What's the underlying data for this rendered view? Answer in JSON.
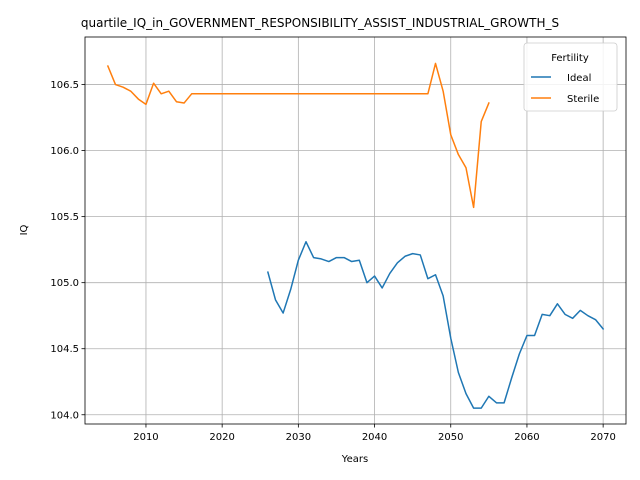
{
  "chart_data": {
    "type": "line",
    "title": "quartile_IQ_in_GOVERNMENT_RESPONSIBILITY_ASSIST_INDUSTRIAL_GROWTH_S",
    "xlabel": "Years",
    "ylabel": "IQ",
    "xlim": [
      2002,
      2073
    ],
    "ylim": [
      103.93,
      106.86
    ],
    "xticks": [
      2010,
      2020,
      2030,
      2040,
      2050,
      2060,
      2070
    ],
    "yticks": [
      104.0,
      104.5,
      105.0,
      105.5,
      106.0,
      106.5
    ],
    "xtick_labels": [
      "2010",
      "2020",
      "2030",
      "2040",
      "2050",
      "2060",
      "2070"
    ],
    "ytick_labels": [
      "104.0",
      "104.5",
      "105.0",
      "105.5",
      "106.0",
      "106.5"
    ],
    "grid": true,
    "legend": {
      "title": "Fertility",
      "position": "top-right"
    },
    "series": [
      {
        "name": "Ideal",
        "color": "#1f77b4",
        "x": [
          2026,
          2027,
          2028,
          2029,
          2030,
          2031,
          2032,
          2033,
          2034,
          2035,
          2036,
          2037,
          2038,
          2039,
          2040,
          2041,
          2042,
          2043,
          2044,
          2045,
          2046,
          2047,
          2048,
          2049,
          2050,
          2051,
          2052,
          2053,
          2054,
          2055,
          2056,
          2057,
          2058,
          2059,
          2060,
          2061,
          2062,
          2063,
          2064,
          2065,
          2066,
          2067,
          2068,
          2069,
          2070
        ],
        "y": [
          105.08,
          104.87,
          104.77,
          104.95,
          105.17,
          105.31,
          105.19,
          105.18,
          105.16,
          105.19,
          105.19,
          105.16,
          105.17,
          105.0,
          105.05,
          104.96,
          105.07,
          105.15,
          105.2,
          105.22,
          105.21,
          105.03,
          105.06,
          104.9,
          104.58,
          104.32,
          104.16,
          104.05,
          104.05,
          104.14,
          104.09,
          104.09,
          104.28,
          104.46,
          104.6,
          104.6,
          104.76,
          104.75,
          104.84,
          104.76,
          104.73,
          104.79,
          104.75,
          104.72,
          104.65
        ]
      },
      {
        "name": "Sterile",
        "color": "#ff7f0e",
        "x": [
          2005,
          2006,
          2007,
          2008,
          2009,
          2010,
          2011,
          2012,
          2013,
          2014,
          2015,
          2016,
          2017,
          2018,
          2019,
          2020,
          2021,
          2022,
          2023,
          2024,
          2025,
          2026,
          2027,
          2028,
          2029,
          2030,
          2031,
          2032,
          2033,
          2034,
          2035,
          2036,
          2037,
          2038,
          2039,
          2040,
          2041,
          2042,
          2043,
          2044,
          2045,
          2046,
          2047,
          2048,
          2049,
          2050,
          2051,
          2052,
          2053,
          2054,
          2055
        ],
        "y": [
          106.64,
          106.5,
          106.48,
          106.45,
          106.39,
          106.35,
          106.51,
          106.43,
          106.45,
          106.37,
          106.36,
          106.43,
          106.43,
          106.43,
          106.43,
          106.43,
          106.43,
          106.43,
          106.43,
          106.43,
          106.43,
          106.43,
          106.43,
          106.43,
          106.43,
          106.43,
          106.43,
          106.43,
          106.43,
          106.43,
          106.43,
          106.43,
          106.43,
          106.43,
          106.43,
          106.43,
          106.43,
          106.43,
          106.43,
          106.43,
          106.43,
          106.43,
          106.43,
          106.66,
          106.45,
          106.12,
          105.97,
          105.87,
          105.57,
          106.22,
          106.36
        ]
      }
    ]
  }
}
